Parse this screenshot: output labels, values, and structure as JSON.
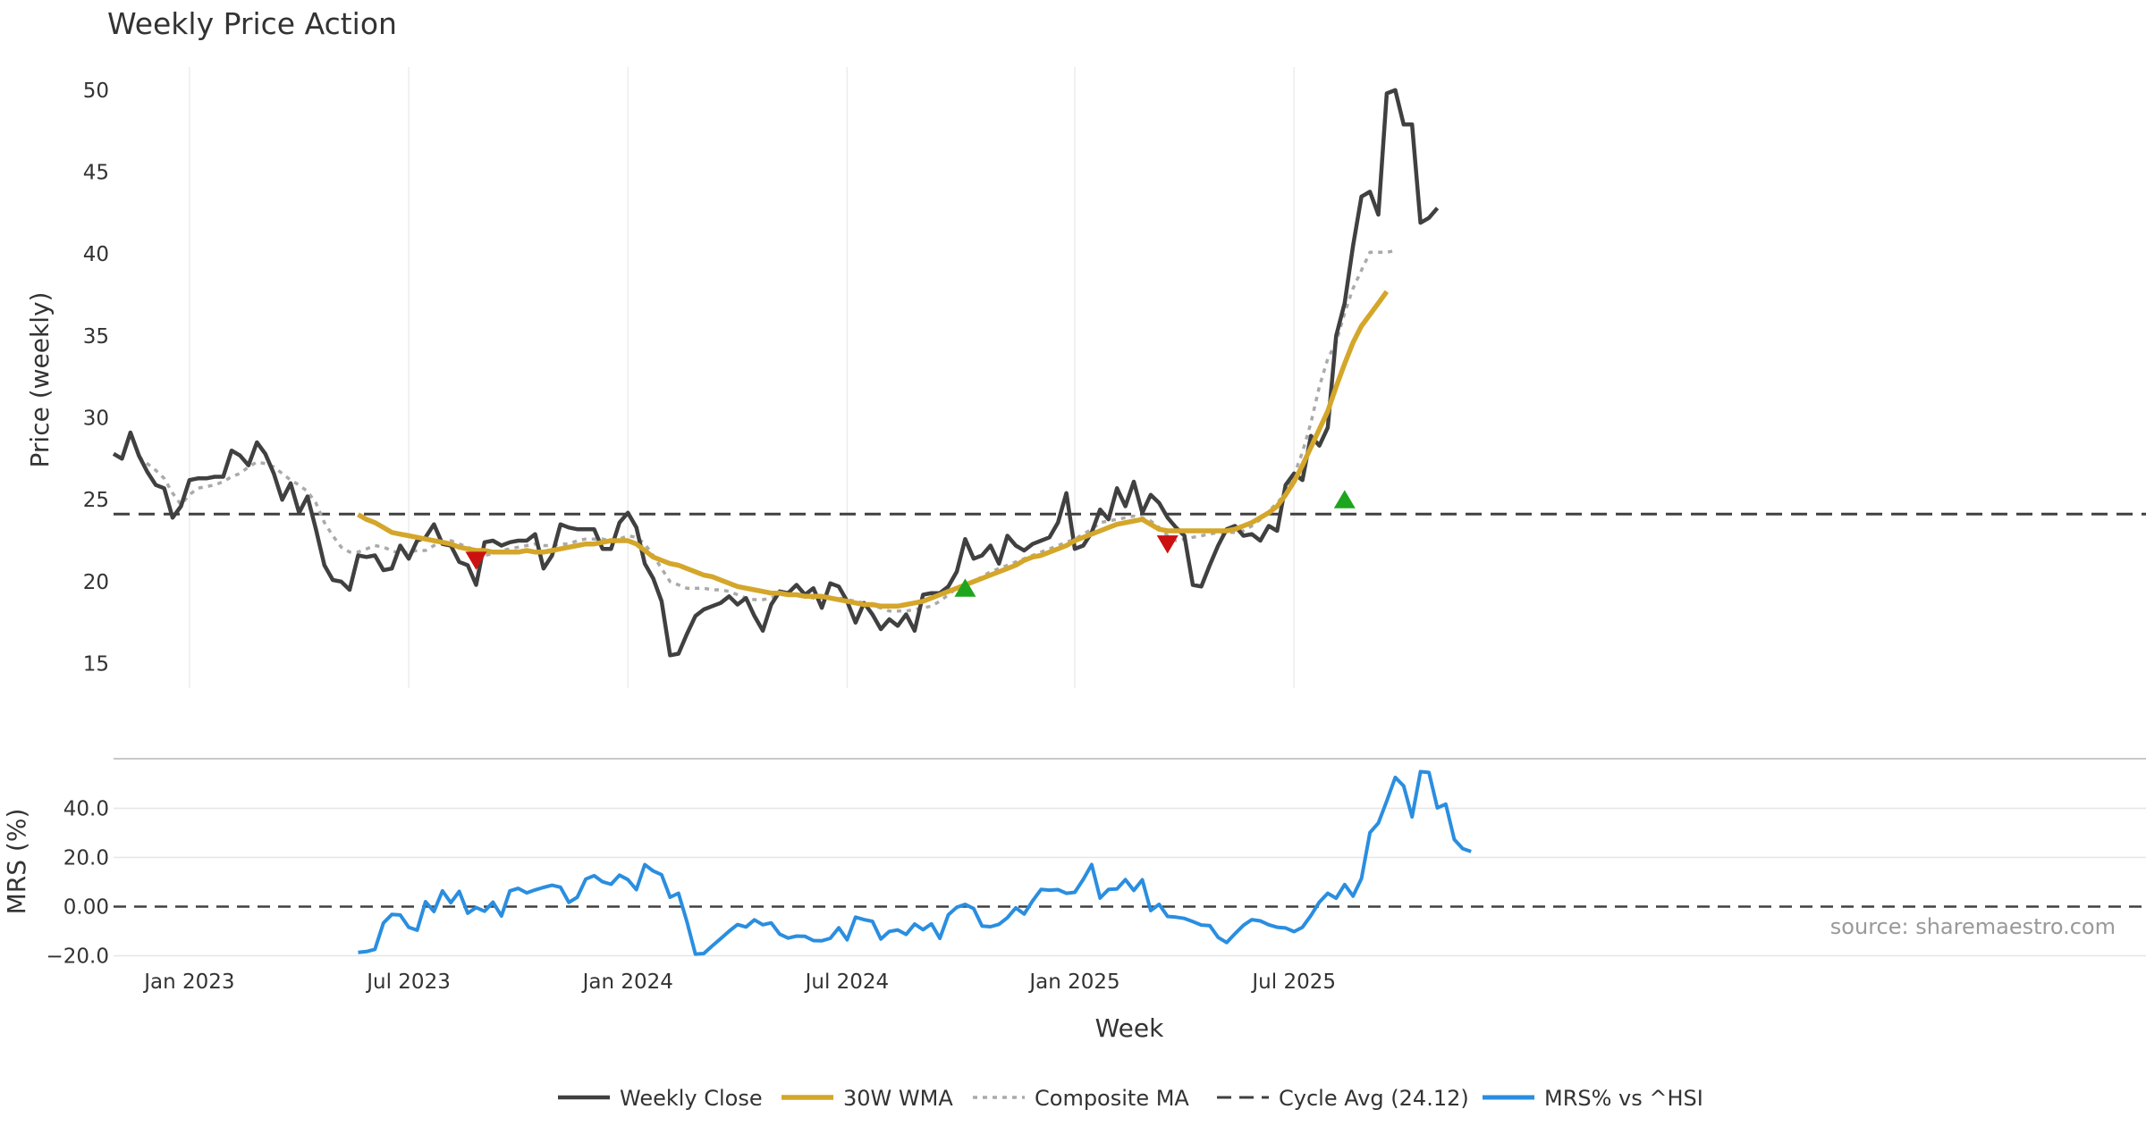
{
  "chart_data": {
    "type": "line",
    "title": "Weekly Price Action",
    "xlabel": "Week",
    "x_ticks": [
      "Jan 2023",
      "Jul 2023",
      "Jan 2024",
      "Jul 2024",
      "Jan 2025",
      "Jul 2025"
    ],
    "price_panel": {
      "ylabel": "Price (weekly)",
      "ylim": [
        13.5,
        52.5
      ],
      "y_ticks": [
        15,
        20,
        25,
        30,
        35,
        40,
        45,
        50
      ],
      "cycle_avg": 24.12,
      "start_week_index": 0
    },
    "mrs_panel": {
      "ylabel": "MRS (%)",
      "ylim": [
        -22,
        58
      ],
      "y_ticks": [
        "40.0",
        "20.0",
        "0.00",
        "−20.0"
      ],
      "y_tick_values": [
        40,
        20,
        0,
        -20
      ],
      "zero_line": 0
    },
    "series": [
      {
        "name": "Weekly Close",
        "color": "#404040",
        "values": [
          27.8,
          27.5,
          29.1,
          27.7,
          26.7,
          25.9,
          25.7,
          23.9,
          24.6,
          26.2,
          26.3,
          26.3,
          26.4,
          26.4,
          28.0,
          27.7,
          27.1,
          28.5,
          27.8,
          26.6,
          25.0,
          26.0,
          24.2,
          25.2,
          23.2,
          21.0,
          20.1,
          20.0,
          19.5,
          21.6,
          21.5,
          21.6,
          20.7,
          20.8,
          22.2,
          21.4,
          22.5,
          22.7,
          23.5,
          22.3,
          22.2,
          21.2,
          21.0,
          19.8,
          22.4,
          22.5,
          22.2,
          22.4,
          22.5,
          22.5,
          22.9,
          20.8,
          21.6,
          23.5,
          23.3,
          23.2,
          23.2,
          23.2,
          22.0,
          22.0,
          23.6,
          24.2,
          23.3,
          21.1,
          20.2,
          18.8,
          15.5,
          15.6,
          16.8,
          17.9,
          18.3,
          18.5,
          18.7,
          19.1,
          18.6,
          19.0,
          17.9,
          17.0,
          18.6,
          19.4,
          19.3,
          19.8,
          19.2,
          19.6,
          18.4,
          19.9,
          19.7,
          18.8,
          17.5,
          18.7,
          18.0,
          17.1,
          17.7,
          17.3,
          18.0,
          17.0,
          19.2,
          19.3,
          19.3,
          19.7,
          20.6,
          22.6,
          21.4,
          21.6,
          22.2,
          21.1,
          22.8,
          22.2,
          21.9,
          22.3,
          22.5,
          22.7,
          23.6,
          25.4,
          22.0,
          22.2,
          23.0,
          24.4,
          23.8,
          25.7,
          24.6,
          26.1,
          24.2,
          25.3,
          24.8,
          23.9,
          23.3,
          22.8,
          19.8,
          19.7,
          21.0,
          22.2,
          23.2,
          23.4,
          22.8,
          22.9,
          22.5,
          23.4,
          23.1,
          25.9,
          26.6,
          26.2,
          28.9,
          28.3,
          29.4,
          35.0,
          37.0,
          40.5,
          43.5,
          43.8,
          42.4,
          49.8,
          50.0,
          47.9,
          47.9,
          41.9,
          42.2,
          42.8
        ]
      },
      {
        "name": "30W WMA",
        "color": "#d4a62a",
        "start_index": 29,
        "values": [
          24.1,
          23.8,
          23.6,
          23.3,
          23.0,
          22.9,
          22.8,
          22.7,
          22.6,
          22.5,
          22.4,
          22.3,
          22.1,
          22.0,
          21.9,
          21.9,
          21.8,
          21.8,
          21.8,
          21.8,
          21.9,
          21.8,
          21.8,
          21.9,
          22.0,
          22.1,
          22.2,
          22.3,
          22.3,
          22.4,
          22.5,
          22.5,
          22.5,
          22.3,
          21.9,
          21.5,
          21.3,
          21.1,
          21.0,
          20.8,
          20.6,
          20.4,
          20.3,
          20.1,
          19.9,
          19.7,
          19.6,
          19.5,
          19.4,
          19.3,
          19.3,
          19.2,
          19.2,
          19.1,
          19.1,
          19.1,
          19.0,
          18.9,
          18.8,
          18.7,
          18.6,
          18.6,
          18.5,
          18.5,
          18.5,
          18.6,
          18.7,
          18.8,
          19.0,
          19.2,
          19.4,
          19.6,
          19.8,
          20.0,
          20.2,
          20.4,
          20.6,
          20.8,
          21.0,
          21.3,
          21.5,
          21.6,
          21.8,
          22.0,
          22.2,
          22.5,
          22.7,
          22.9,
          23.1,
          23.3,
          23.5,
          23.6,
          23.7,
          23.8,
          23.5,
          23.2,
          23.1,
          23.1,
          23.1,
          23.1,
          23.1,
          23.1,
          23.1,
          23.1,
          23.2,
          23.4,
          23.6,
          23.9,
          24.2,
          24.6,
          25.3,
          26.1,
          27.1,
          28.2,
          29.3,
          30.4,
          31.9,
          33.3,
          34.6,
          35.6,
          36.3,
          37.0,
          37.7
        ]
      },
      {
        "name": "Composite MA",
        "color": "#aaaaaa",
        "start_index": 3,
        "values": [
          27.6,
          27.2,
          26.8,
          26.3,
          25.4,
          24.7,
          25.3,
          25.7,
          25.8,
          25.9,
          26.1,
          26.4,
          26.6,
          27.0,
          27.3,
          27.2,
          27.0,
          26.6,
          26.2,
          25.9,
          25.5,
          24.8,
          23.6,
          22.8,
          22.1,
          21.8,
          21.8,
          22.0,
          22.2,
          22.1,
          21.9,
          21.7,
          21.8,
          21.9,
          21.9,
          22.2,
          22.4,
          22.5,
          22.3,
          22.1,
          21.9,
          21.6,
          21.7,
          21.9,
          22.0,
          22.1,
          22.2,
          22.3,
          22.2,
          22.2,
          22.3,
          22.3,
          22.5,
          22.6,
          22.6,
          22.6,
          22.5,
          22.6,
          22.8,
          22.7,
          22.3,
          21.6,
          20.8,
          20.0,
          19.8,
          19.6,
          19.6,
          19.6,
          19.5,
          19.5,
          19.4,
          19.2,
          19.0,
          18.9,
          18.9,
          19.0,
          19.2,
          19.2,
          19.2,
          19.1,
          19.0,
          19.0,
          19.0,
          19.0,
          18.9,
          18.8,
          18.7,
          18.5,
          18.4,
          18.2,
          18.2,
          18.2,
          18.3,
          18.4,
          18.5,
          18.8,
          19.2,
          19.6,
          19.8,
          20.0,
          20.3,
          20.6,
          20.8,
          21.0,
          21.2,
          21.4,
          21.6,
          21.8,
          22.0,
          22.2,
          22.4,
          22.6,
          22.9,
          23.2,
          23.6,
          23.7,
          23.8,
          23.9,
          24.0,
          23.9,
          23.7,
          23.3,
          22.8,
          22.5,
          22.6,
          22.7,
          22.8,
          22.9,
          23.0,
          23.0,
          23.0,
          23.1,
          23.4,
          23.8,
          24.3,
          24.8,
          25.4,
          26.5,
          27.9,
          29.7,
          31.9,
          33.6,
          34.6,
          36.4,
          37.9,
          39.0,
          40.1,
          40.1,
          40.1,
          40.2
        ]
      },
      {
        "name": "Cycle Avg (24.12)",
        "color": "#404040",
        "value": 24.12
      },
      {
        "name": "MRS% vs ^HSI",
        "color": "#2a8ee0",
        "start_index": 29,
        "values": [
          -18.6,
          -18.3,
          -17.4,
          -6.7,
          -3.2,
          -3.4,
          -8.4,
          -9.6,
          2.0,
          -2.0,
          6.4,
          1.6,
          6.2,
          -2.7,
          -0.4,
          -1.9,
          1.8,
          -3.8,
          6.4,
          7.4,
          5.6,
          6.8,
          7.8,
          8.7,
          7.9,
          1.7,
          3.8,
          11.2,
          12.6,
          10.1,
          9.1,
          12.8,
          11.0,
          6.9,
          17.1,
          14.5,
          13.0,
          3.8,
          5.4,
          -6.1,
          -19.3,
          -19.1,
          -16.0,
          -13.0,
          -10.0,
          -7.3,
          -8.3,
          -5.4,
          -7.4,
          -6.6,
          -11.2,
          -12.8,
          -12.0,
          -12.1,
          -13.8,
          -13.9,
          -12.9,
          -8.6,
          -13.5,
          -4.3,
          -5.3,
          -6.0,
          -13.2,
          -10.1,
          -9.5,
          -11.3,
          -7.1,
          -9.4,
          -7.0,
          -12.9,
          -3.3,
          -0.3,
          0.9,
          -0.8,
          -7.9,
          -8.2,
          -7.2,
          -4.5,
          -0.5,
          -3.0,
          2.4,
          7.0,
          6.7,
          6.9,
          5.4,
          5.8,
          11.1,
          17.1,
          3.5,
          7.0,
          7.2,
          11.0,
          6.6,
          10.9,
          -1.6,
          0.9,
          -4.0,
          -4.3,
          -4.8,
          -6.1,
          -7.5,
          -7.7,
          -12.5,
          -14.6,
          -11.0,
          -7.6,
          -5.3,
          -5.8,
          -7.4,
          -8.4,
          -8.7,
          -10.2,
          -8.4,
          -3.6,
          1.8,
          5.4,
          3.4,
          9.0,
          4.3,
          11.4,
          30.1,
          34.0,
          43.0,
          52.6,
          49.1,
          36.5,
          54.9,
          54.6,
          40.2,
          41.7,
          27.3,
          23.6,
          22.4
        ]
      }
    ],
    "signals": [
      {
        "type": "sell",
        "index": 43,
        "value": 21.3,
        "color": "#cc1111"
      },
      {
        "type": "buy",
        "index": 101,
        "value": 19.6,
        "color": "#1ea51e"
      },
      {
        "type": "sell",
        "index": 125,
        "value": 22.3,
        "color": "#cc1111"
      },
      {
        "type": "buy",
        "index": 146,
        "value": 25.0,
        "color": "#1ea51e"
      }
    ],
    "source_text": "source: sharemaestro.com",
    "legend_position": "bottom-center"
  }
}
